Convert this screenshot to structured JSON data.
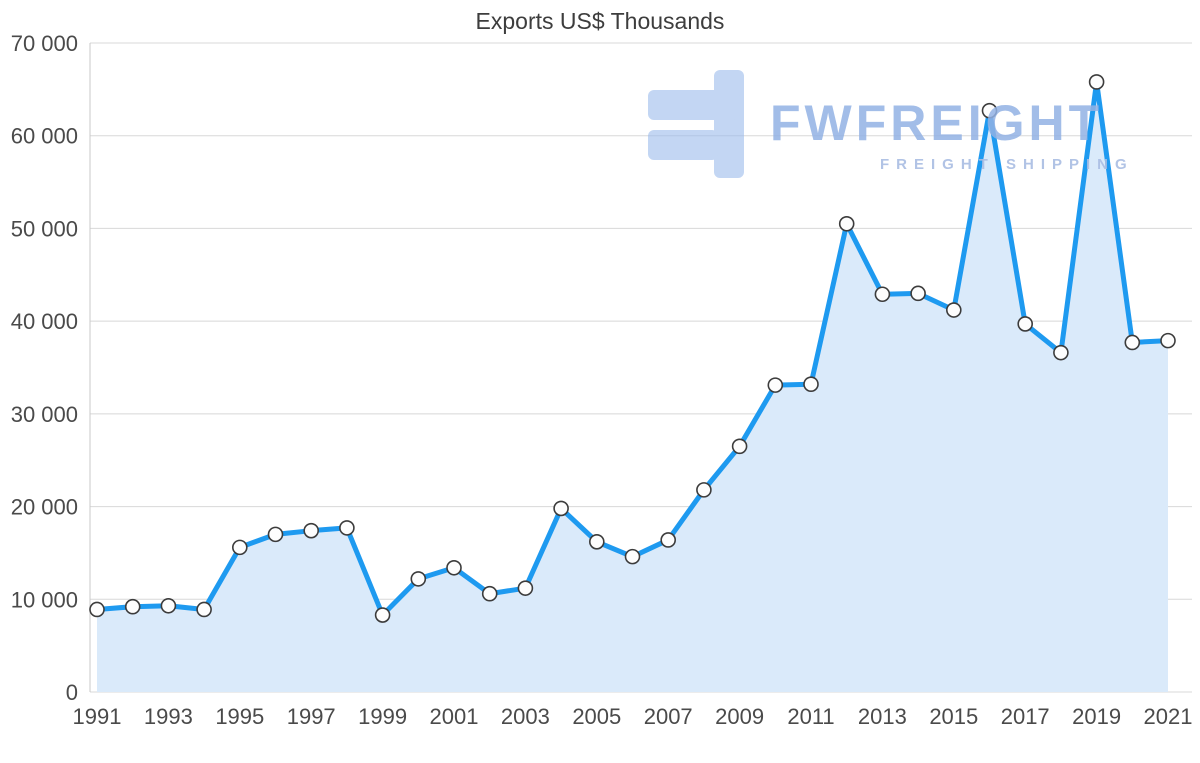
{
  "title": "Exports US$ Thousands",
  "watermark": {
    "brand": "FWFREIGHT",
    "tagline": "FREIGHT SHIPPING",
    "logo_color": "#9cbcec"
  },
  "chart_data": {
    "type": "area",
    "title": "Exports US$ Thousands",
    "xlabel": "",
    "ylabel": "US$ Thousands",
    "x": [
      1991,
      1992,
      1993,
      1994,
      1995,
      1996,
      1997,
      1998,
      1999,
      2000,
      2001,
      2002,
      2003,
      2004,
      2005,
      2006,
      2007,
      2008,
      2009,
      2010,
      2011,
      2012,
      2013,
      2014,
      2015,
      2016,
      2017,
      2018,
      2019,
      2020,
      2021
    ],
    "values": [
      8900,
      9200,
      9300,
      8900,
      15600,
      17000,
      17400,
      17700,
      8300,
      12200,
      13400,
      10600,
      11200,
      19800,
      16200,
      14600,
      16400,
      21800,
      26500,
      33100,
      33200,
      50500,
      42900,
      43000,
      41200,
      62700,
      39700,
      36600,
      65800,
      37700,
      37900
    ],
    "xticks": [
      1991,
      1993,
      1995,
      1997,
      1999,
      2001,
      2003,
      2005,
      2007,
      2009,
      2011,
      2013,
      2015,
      2017,
      2019,
      2021
    ],
    "yticks": [
      {
        "label": "0",
        "value": 0
      },
      {
        "label": "10 000",
        "value": 10000
      },
      {
        "label": "20 000",
        "value": 20000
      },
      {
        "label": "30 000",
        "value": 30000
      },
      {
        "label": "40 000",
        "value": 40000
      },
      {
        "label": "50 000",
        "value": 50000
      },
      {
        "label": "60 000",
        "value": 60000
      },
      {
        "label": "70 000",
        "value": 70000
      }
    ],
    "ylim": [
      0,
      70000
    ],
    "grid": "horizontal",
    "legend": "none",
    "line_color": "#1e9af0",
    "fill_color": "#daeafa",
    "marker_fill": "#fdfdfd",
    "marker_stroke": "#3c3c3c",
    "gridline_color": "#d8d8d8",
    "axis_color": "#c9c9c9",
    "tick_label_color": "#4a4a4a"
  }
}
